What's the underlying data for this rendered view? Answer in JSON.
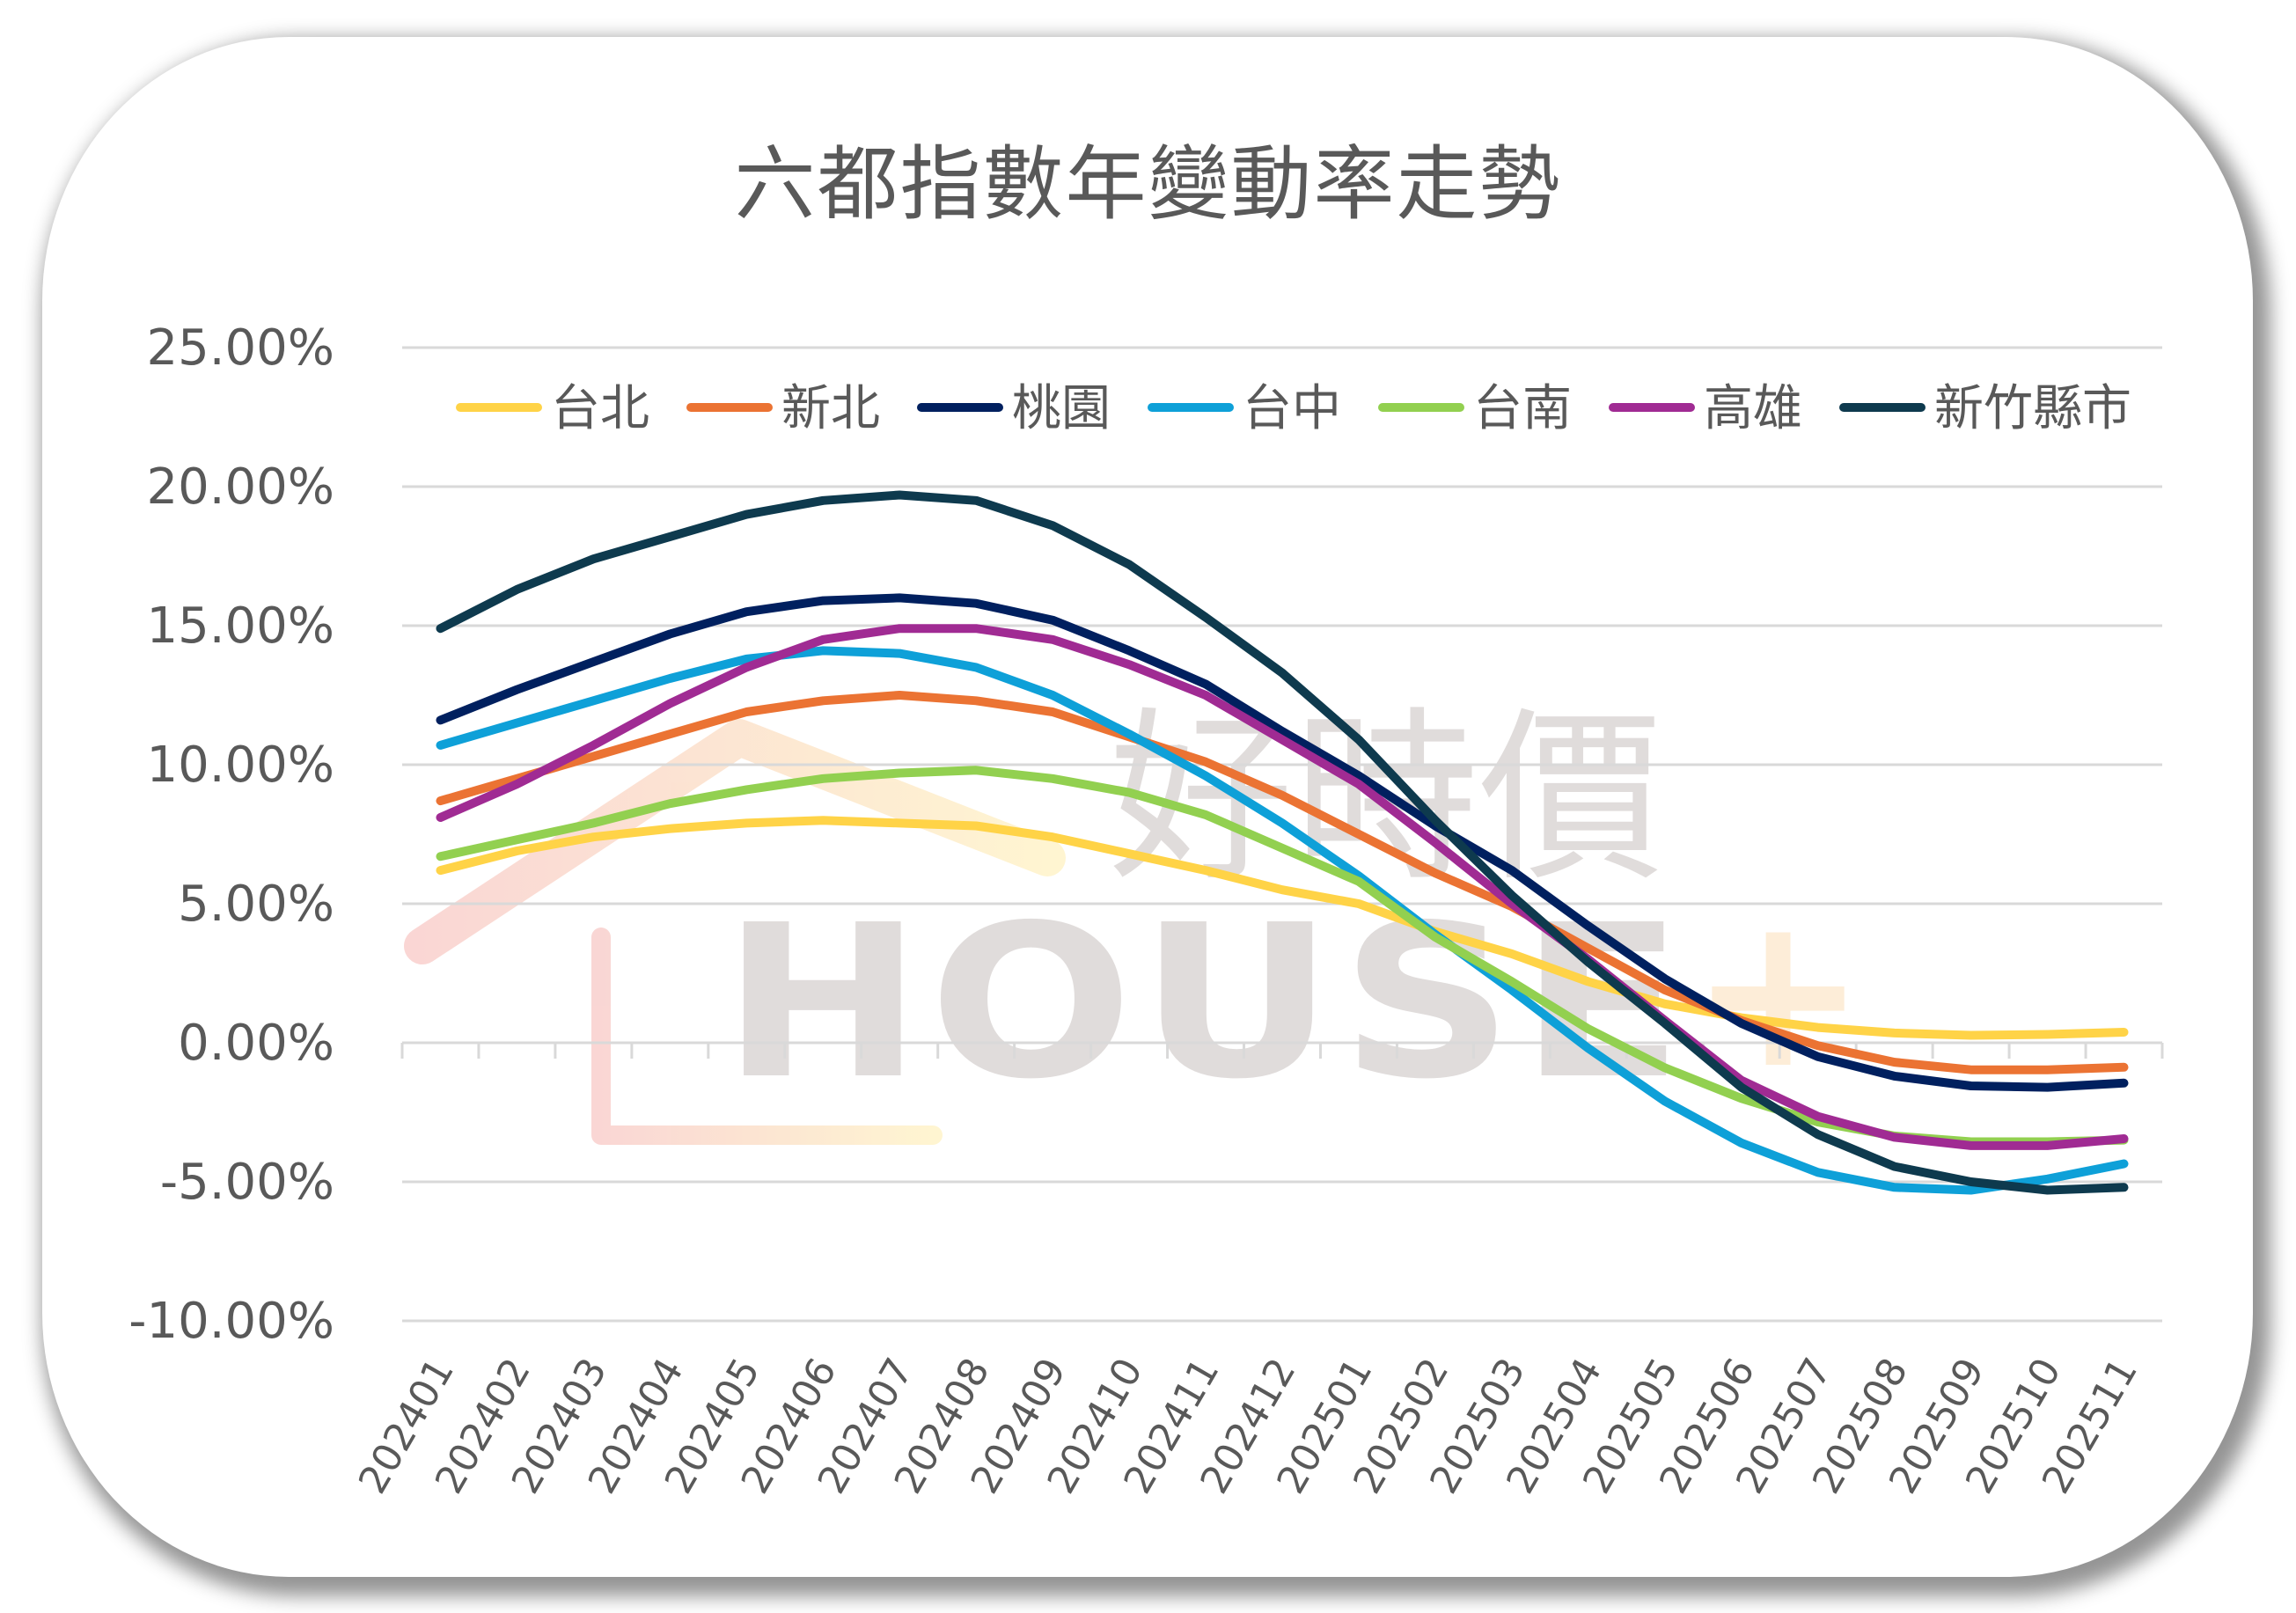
{
  "title": "六都指數年變動率走勢",
  "watermark": {
    "brand_cn": "好時價",
    "brand_en": "HOUSE",
    "brand_plus": "+"
  },
  "chart_data": {
    "type": "line",
    "title": "六都指數年變動率走勢",
    "xlabel": "",
    "ylabel": "",
    "ylim": [
      -10,
      25
    ],
    "yticks": [
      "25.00%",
      "20.00%",
      "15.00%",
      "10.00%",
      "5.00%",
      "0.00%",
      "-5.00%",
      "-10.00%"
    ],
    "ytick_values": [
      25,
      20,
      15,
      10,
      5,
      0,
      -5,
      -10
    ],
    "grid": true,
    "legend_position": "top",
    "categories": [
      "202401",
      "202402",
      "202403",
      "202404",
      "202405",
      "202406",
      "202407",
      "202408",
      "202409",
      "202410",
      "202411",
      "202412",
      "202501",
      "202502",
      "202503",
      "202504",
      "202505",
      "202506",
      "202507",
      "202508",
      "202509",
      "202510",
      "202511"
    ],
    "series": [
      {
        "name": "台北",
        "color": "#FFD347",
        "values": [
          6.2,
          6.9,
          7.4,
          7.7,
          7.9,
          8.0,
          7.9,
          7.8,
          7.4,
          6.8,
          6.2,
          5.5,
          5.0,
          4.0,
          3.2,
          2.2,
          1.4,
          0.9,
          0.55,
          0.35,
          0.27,
          0.3,
          0.38
        ]
      },
      {
        "name": "新北",
        "color": "#EB7333",
        "values": [
          8.7,
          9.5,
          10.3,
          11.1,
          11.9,
          12.3,
          12.5,
          12.3,
          11.9,
          11.0,
          10.1,
          8.9,
          7.5,
          6.1,
          4.9,
          3.4,
          1.9,
          0.8,
          -0.1,
          -0.7,
          -0.97,
          -0.97,
          -0.88
        ]
      },
      {
        "name": "桃園",
        "color": "#00205F",
        "values": [
          11.6,
          12.7,
          13.7,
          14.7,
          15.5,
          15.9,
          16.0,
          15.8,
          15.2,
          14.1,
          12.9,
          11.2,
          9.6,
          7.8,
          6.2,
          4.2,
          2.3,
          0.7,
          -0.5,
          -1.2,
          -1.55,
          -1.6,
          -1.45
        ]
      },
      {
        "name": "台中",
        "color": "#0EA0D8",
        "values": [
          10.7,
          11.5,
          12.3,
          13.1,
          13.8,
          14.1,
          14.0,
          13.5,
          12.5,
          11.1,
          9.6,
          7.9,
          6.0,
          3.9,
          1.9,
          -0.2,
          -2.1,
          -3.6,
          -4.66,
          -5.2,
          -5.3,
          -4.9,
          -4.35
        ]
      },
      {
        "name": "台南",
        "color": "#92D050",
        "values": [
          6.7,
          7.3,
          7.9,
          8.6,
          9.1,
          9.5,
          9.7,
          9.8,
          9.5,
          9.0,
          8.2,
          7.0,
          5.8,
          3.8,
          2.2,
          0.5,
          -0.9,
          -2.0,
          -2.85,
          -3.35,
          -3.56,
          -3.56,
          -3.5
        ]
      },
      {
        "name": "高雄",
        "color": "#A02B93",
        "values": [
          8.1,
          9.3,
          10.7,
          12.2,
          13.5,
          14.5,
          14.9,
          14.9,
          14.5,
          13.6,
          12.5,
          10.9,
          9.3,
          7.2,
          5.0,
          3.0,
          0.8,
          -1.35,
          -2.65,
          -3.4,
          -3.7,
          -3.7,
          -3.45
        ]
      },
      {
        "name": "新竹縣市",
        "color": "#0E3A4E",
        "values": [
          14.9,
          16.3,
          17.4,
          18.2,
          19.0,
          19.5,
          19.7,
          19.5,
          18.6,
          17.2,
          15.3,
          13.3,
          10.9,
          8.0,
          5.3,
          2.9,
          0.7,
          -1.6,
          -3.3,
          -4.45,
          -5.0,
          -5.3,
          -5.2
        ]
      }
    ]
  },
  "colors": {
    "text": "#595959",
    "grid": "#D9D9D9",
    "watermark": "#D6D1CF",
    "watermark_accent": "#FDE7CC"
  }
}
